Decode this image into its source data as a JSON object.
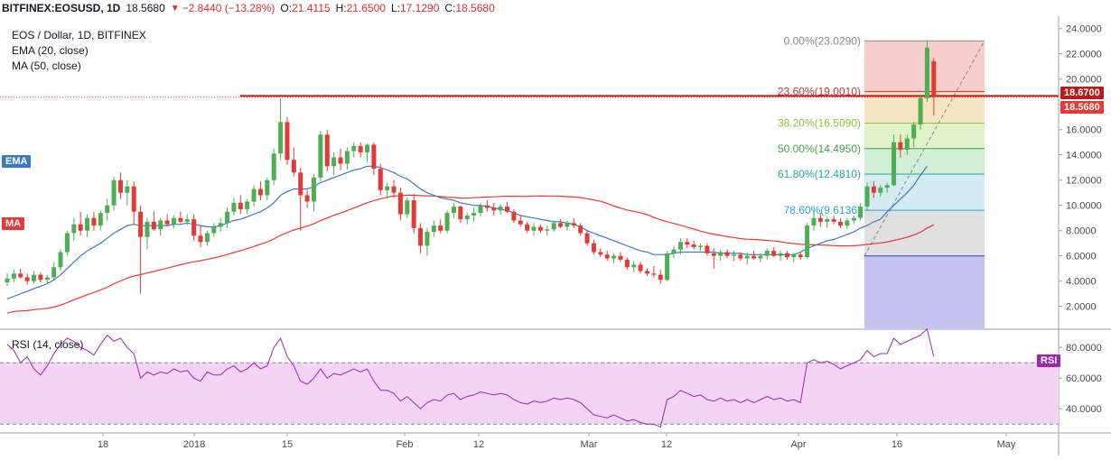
{
  "header": {
    "symbol": "BITFINEX:EOSUSD, 1D",
    "last": "18.5680",
    "arrow": "▼",
    "change": "−2.8440 (−13.28%)",
    "o_label": "O:",
    "o_value": "21.4115",
    "h_label": "H:",
    "h_value": "21.6500",
    "l_label": "L:",
    "l_value": "17.1290",
    "c_label": "C:",
    "c_value": "18.5680"
  },
  "legend": {
    "title": "EOS / Dollar, 1D, BITFINEX",
    "ema": "EMA (20, close)",
    "ma": "MA (50, close)",
    "ema_tag": "EMA",
    "ma_tag": "MA",
    "rsi": "RSI (14, close)",
    "rsi_tag": "RSI"
  },
  "price_tags": {
    "resistance": "18.6700",
    "last": "18.5680"
  },
  "colors": {
    "up": "#4caf50",
    "down": "#e53935",
    "ema": "#3a7bbf",
    "ma": "#e53935",
    "resistance": "#b71c1c",
    "rsi": "#9c27b0",
    "rsi_band": "#f4d3f5"
  },
  "chart_data": [
    {
      "type": "candlestick",
      "title": "EOS / Dollar, 1D, BITFINEX",
      "x_ticks": [
        "18",
        "2018",
        "15",
        "Feb",
        "12",
        "Mar",
        "12",
        "Apr",
        "16",
        "May"
      ],
      "y_ticks": [
        "2.0000",
        "4.0000",
        "6.0000",
        "8.0000",
        "10.0000",
        "12.0000",
        "14.0000",
        "16.0000",
        "18.0000",
        "20.0000",
        "22.0000",
        "24.0000"
      ],
      "ylim": [
        0,
        24.3
      ],
      "candles_ohlc": [
        [
          3.9,
          4.6,
          3.6,
          4.2
        ],
        [
          4.2,
          4.9,
          3.9,
          4.6
        ],
        [
          4.6,
          5.0,
          4.2,
          4.3
        ],
        [
          4.3,
          4.6,
          3.7,
          4.0
        ],
        [
          4.0,
          4.8,
          3.8,
          4.5
        ],
        [
          4.5,
          4.7,
          3.9,
          4.1
        ],
        [
          4.1,
          4.5,
          3.8,
          4.3
        ],
        [
          4.3,
          5.5,
          4.0,
          5.1
        ],
        [
          5.1,
          6.5,
          4.8,
          6.3
        ],
        [
          6.3,
          8.0,
          6.0,
          7.8
        ],
        [
          7.8,
          9.0,
          7.2,
          8.5
        ],
        [
          8.5,
          9.5,
          7.6,
          8.0
        ],
        [
          8.0,
          9.3,
          7.5,
          9.0
        ],
        [
          9.0,
          9.5,
          8.0,
          8.4
        ],
        [
          8.4,
          9.6,
          8.0,
          9.4
        ],
        [
          9.4,
          10.5,
          8.8,
          10.0
        ],
        [
          10.0,
          12.3,
          9.6,
          12.0
        ],
        [
          12.0,
          12.6,
          10.5,
          11.0
        ],
        [
          11.0,
          12.0,
          10.0,
          11.5
        ],
        [
          11.5,
          11.9,
          8.5,
          9.5
        ],
        [
          9.5,
          10.0,
          3.0,
          7.5
        ],
        [
          7.5,
          9.0,
          6.5,
          8.7
        ],
        [
          8.7,
          9.5,
          8.0,
          8.1
        ],
        [
          8.1,
          9.0,
          7.6,
          8.8
        ],
        [
          8.8,
          9.3,
          8.3,
          8.5
        ],
        [
          8.5,
          9.2,
          8.2,
          9.0
        ],
        [
          9.0,
          9.5,
          8.6,
          8.7
        ],
        [
          8.7,
          9.3,
          8.4,
          8.9
        ],
        [
          8.9,
          9.3,
          7.2,
          7.6
        ],
        [
          7.6,
          8.4,
          6.7,
          7.1
        ],
        [
          7.1,
          8.0,
          6.8,
          7.8
        ],
        [
          7.8,
          8.6,
          7.5,
          8.3
        ],
        [
          8.3,
          9.0,
          7.9,
          8.6
        ],
        [
          8.6,
          9.8,
          8.2,
          9.5
        ],
        [
          9.5,
          10.6,
          9.2,
          10.2
        ],
        [
          10.2,
          10.8,
          9.3,
          9.7
        ],
        [
          9.7,
          10.5,
          9.3,
          10.3
        ],
        [
          10.3,
          11.6,
          9.9,
          11.3
        ],
        [
          11.3,
          11.9,
          10.4,
          10.8
        ],
        [
          10.8,
          12.2,
          10.4,
          12.0
        ],
        [
          12.0,
          14.5,
          11.6,
          14.1
        ],
        [
          14.1,
          18.5,
          13.6,
          16.6
        ],
        [
          16.6,
          17.0,
          13.2,
          13.6
        ],
        [
          13.6,
          14.6,
          12.3,
          12.6
        ],
        [
          12.6,
          13.0,
          8.0,
          10.8
        ],
        [
          10.8,
          11.2,
          9.8,
          10.3
        ],
        [
          10.3,
          12.5,
          9.5,
          12.2
        ],
        [
          12.2,
          15.9,
          11.9,
          15.6
        ],
        [
          15.6,
          16.0,
          12.7,
          13.1
        ],
        [
          13.1,
          14.2,
          12.4,
          13.8
        ],
        [
          13.8,
          14.5,
          12.8,
          13.3
        ],
        [
          13.3,
          14.6,
          12.8,
          14.3
        ],
        [
          14.3,
          15.0,
          13.8,
          14.7
        ],
        [
          14.7,
          15.0,
          13.8,
          14.2
        ],
        [
          14.2,
          14.9,
          13.4,
          14.8
        ],
        [
          14.8,
          15.0,
          12.4,
          12.9
        ],
        [
          12.9,
          13.3,
          10.8,
          11.2
        ],
        [
          11.2,
          11.8,
          10.5,
          11.5
        ],
        [
          11.5,
          12.0,
          10.6,
          11.0
        ],
        [
          11.0,
          11.4,
          8.8,
          9.3
        ],
        [
          9.3,
          10.6,
          9.0,
          10.4
        ],
        [
          10.4,
          10.9,
          7.8,
          8.2
        ],
        [
          8.2,
          8.6,
          6.2,
          6.8
        ],
        [
          6.8,
          8.2,
          6.0,
          7.9
        ],
        [
          7.9,
          8.8,
          7.5,
          8.4
        ],
        [
          8.4,
          8.9,
          7.8,
          8.0
        ],
        [
          8.0,
          9.6,
          7.8,
          9.4
        ],
        [
          9.4,
          10.2,
          9.0,
          9.9
        ],
        [
          9.9,
          10.0,
          8.6,
          8.9
        ],
        [
          8.9,
          9.4,
          8.5,
          9.2
        ],
        [
          9.2,
          9.8,
          8.7,
          9.4
        ],
        [
          9.4,
          10.2,
          9.1,
          10.0
        ],
        [
          10.0,
          10.4,
          9.5,
          9.8
        ],
        [
          9.8,
          10.2,
          9.2,
          9.6
        ],
        [
          9.6,
          10.1,
          9.3,
          9.9
        ],
        [
          9.9,
          10.3,
          9.4,
          9.5
        ],
        [
          9.5,
          9.7,
          8.6,
          8.8
        ],
        [
          8.8,
          9.2,
          8.3,
          8.5
        ],
        [
          8.5,
          8.7,
          7.8,
          8.0
        ],
        [
          8.0,
          8.6,
          7.6,
          8.3
        ],
        [
          8.3,
          8.5,
          7.8,
          8.0
        ],
        [
          8.0,
          8.4,
          7.6,
          8.1
        ],
        [
          8.1,
          8.8,
          7.9,
          8.6
        ],
        [
          8.6,
          8.9,
          8.2,
          8.3
        ],
        [
          8.3,
          8.8,
          8.0,
          8.6
        ],
        [
          8.6,
          9.0,
          8.2,
          8.4
        ],
        [
          8.4,
          8.6,
          7.6,
          7.8
        ],
        [
          7.8,
          8.0,
          6.8,
          7.0
        ],
        [
          7.0,
          7.3,
          6.1,
          6.3
        ],
        [
          6.3,
          6.6,
          5.9,
          6.1
        ],
        [
          6.1,
          6.4,
          5.6,
          5.8
        ],
        [
          5.8,
          6.2,
          5.4,
          6.0
        ],
        [
          6.0,
          6.3,
          5.5,
          5.7
        ],
        [
          5.7,
          5.9,
          4.9,
          5.1
        ],
        [
          5.1,
          5.6,
          4.7,
          5.3
        ],
        [
          5.3,
          5.5,
          4.6,
          4.8
        ],
        [
          4.8,
          5.0,
          4.4,
          4.6
        ],
        [
          4.6,
          5.2,
          4.3,
          4.5
        ],
        [
          4.5,
          4.9,
          3.8,
          4.1
        ],
        [
          4.1,
          6.4,
          4.0,
          6.2
        ],
        [
          6.2,
          6.8,
          5.8,
          6.5
        ],
        [
          6.5,
          7.4,
          6.1,
          7.1
        ],
        [
          7.1,
          7.4,
          6.6,
          6.9
        ],
        [
          6.9,
          7.2,
          6.5,
          6.7
        ],
        [
          6.7,
          7.0,
          6.4,
          6.8
        ],
        [
          6.8,
          7.0,
          6.0,
          6.2
        ],
        [
          6.2,
          6.6,
          5.0,
          6.0
        ],
        [
          6.0,
          6.5,
          5.6,
          6.3
        ],
        [
          6.3,
          6.5,
          5.8,
          6.0
        ],
        [
          6.0,
          6.4,
          5.6,
          6.1
        ],
        [
          6.1,
          6.3,
          5.6,
          5.8
        ],
        [
          5.8,
          6.3,
          5.3,
          6.0
        ],
        [
          6.0,
          6.4,
          5.7,
          5.8
        ],
        [
          5.8,
          6.2,
          5.5,
          6.0
        ],
        [
          6.0,
          6.6,
          5.7,
          6.4
        ],
        [
          6.4,
          6.7,
          5.9,
          6.0
        ],
        [
          6.0,
          6.4,
          5.6,
          6.2
        ],
        [
          6.2,
          6.4,
          5.7,
          5.9
        ],
        [
          5.9,
          6.2,
          5.5,
          6.1
        ],
        [
          6.1,
          6.3,
          5.7,
          5.9
        ],
        [
          5.9,
          8.6,
          5.8,
          8.4
        ],
        [
          8.4,
          9.6,
          8.0,
          9.0
        ],
        [
          9.0,
          9.4,
          8.3,
          8.7
        ],
        [
          8.7,
          9.1,
          8.2,
          8.9
        ],
        [
          8.9,
          9.2,
          8.5,
          8.7
        ],
        [
          8.7,
          9.0,
          8.2,
          8.4
        ],
        [
          8.4,
          9.0,
          8.1,
          8.8
        ],
        [
          8.8,
          9.2,
          8.5,
          9.0
        ],
        [
          9.0,
          10.2,
          8.8,
          9.9
        ],
        [
          9.9,
          11.8,
          9.6,
          11.5
        ],
        [
          11.5,
          11.9,
          10.6,
          11.0
        ],
        [
          11.0,
          11.6,
          10.7,
          11.4
        ],
        [
          11.4,
          11.8,
          11.0,
          11.6
        ],
        [
          11.6,
          15.6,
          11.5,
          15.0
        ],
        [
          15.0,
          15.6,
          13.8,
          14.4
        ],
        [
          14.4,
          15.6,
          14.0,
          15.3
        ],
        [
          15.3,
          16.6,
          14.6,
          16.4
        ],
        [
          16.4,
          18.8,
          16.0,
          18.5
        ],
        [
          18.5,
          23.0,
          18.2,
          22.5
        ],
        [
          21.4115,
          21.65,
          17.129,
          18.568
        ]
      ],
      "ema_20": [
        2.6,
        2.8,
        3.0,
        3.2,
        3.4,
        3.6,
        3.8,
        4.1,
        4.5,
        5.0,
        5.5,
        6.0,
        6.4,
        6.7,
        7.0,
        7.4,
        7.8,
        8.1,
        8.4,
        8.5,
        8.4,
        8.4,
        8.4,
        8.4,
        8.4,
        8.5,
        8.5,
        8.6,
        8.5,
        8.4,
        8.3,
        8.3,
        8.4,
        8.6,
        8.8,
        8.9,
        9.1,
        9.3,
        9.5,
        9.8,
        10.2,
        10.8,
        11.1,
        11.3,
        11.3,
        11.3,
        11.5,
        11.8,
        12.0,
        12.2,
        12.4,
        12.6,
        12.8,
        12.9,
        13.1,
        13.1,
        13.0,
        12.8,
        12.6,
        12.3,
        12.1,
        11.7,
        11.3,
        11.0,
        10.8,
        10.6,
        10.5,
        10.4,
        10.2,
        10.1,
        10.0,
        10.0,
        9.9,
        9.8,
        9.7,
        9.6,
        9.4,
        9.2,
        9.1,
        9.0,
        8.9,
        8.8,
        8.7,
        8.7,
        8.6,
        8.5,
        8.3,
        8.0,
        7.8,
        7.6,
        7.4,
        7.2,
        7.0,
        6.8,
        6.6,
        6.4,
        6.3,
        6.1,
        6.1,
        6.1,
        6.2,
        6.3,
        6.3,
        6.3,
        6.3,
        6.3,
        6.3,
        6.2,
        6.2,
        6.2,
        6.2,
        6.1,
        6.1,
        6.1,
        6.1,
        6.1,
        6.1,
        6.1,
        6.1,
        6.3,
        6.6,
        6.8,
        7.0,
        7.2,
        7.3,
        7.5,
        7.7,
        7.9,
        8.2,
        8.4,
        8.7,
        8.9,
        9.5,
        10.0,
        10.5,
        11.0,
        11.6,
        12.4,
        13.1
      ]
    },
    {
      "type": "line",
      "title": "RSI (14, close)",
      "y_ticks": [
        "40.0000",
        "60.0000",
        "80.0000"
      ],
      "ylim": [
        25,
        95
      ],
      "band": [
        30,
        70
      ],
      "values": [
        82,
        78,
        70,
        74,
        66,
        62,
        68,
        76,
        82,
        86,
        84,
        80,
        78,
        75,
        82,
        88,
        84,
        86,
        80,
        76,
        60,
        64,
        62,
        64,
        63,
        66,
        64,
        65,
        60,
        58,
        64,
        62,
        62,
        66,
        68,
        64,
        66,
        70,
        66,
        68,
        80,
        86,
        74,
        68,
        58,
        56,
        60,
        66,
        60,
        63,
        62,
        64,
        66,
        64,
        66,
        58,
        52,
        52,
        50,
        45,
        48,
        44,
        40,
        44,
        46,
        45,
        49,
        50,
        46,
        48,
        49,
        51,
        50,
        49,
        50,
        49,
        46,
        44,
        43,
        45,
        44,
        45,
        47,
        46,
        47,
        46,
        44,
        40,
        36,
        35,
        34,
        36,
        34,
        32,
        33,
        31,
        30,
        30,
        28,
        46,
        48,
        52,
        50,
        48,
        49,
        46,
        45,
        47,
        45,
        46,
        44,
        46,
        44,
        46,
        48,
        46,
        47,
        45,
        46,
        44,
        70,
        72,
        70,
        71,
        69,
        66,
        68,
        70,
        72,
        78,
        74,
        76,
        76,
        86,
        82,
        84,
        86,
        88,
        92,
        74
      ]
    }
  ]
}
